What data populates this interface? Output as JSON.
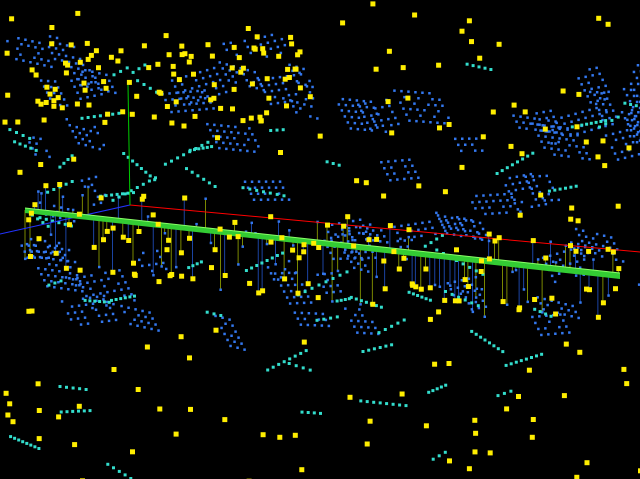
{
  "scene": {
    "background": "#000000",
    "colors": {
      "yellow_points": "#ffee00",
      "cyan_points": "#33ddcc",
      "blue_points": "#3377ee",
      "x_axis": "#ff0000",
      "y_axis": "#00cc00",
      "z_axis": "#2233ff",
      "band": "#33cc33",
      "stems_yellow": "#99aa00",
      "stems_blue": "#2255cc"
    }
  }
}
